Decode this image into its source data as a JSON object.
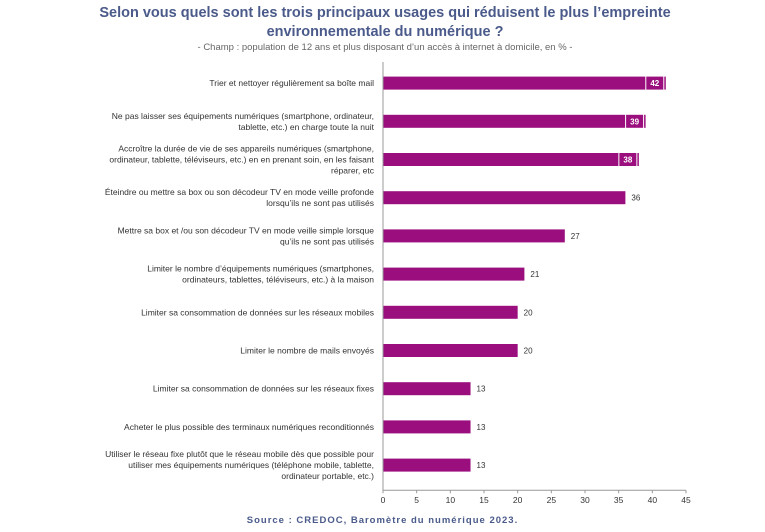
{
  "title": "Selon vous quels sont les trois principaux usages qui réduisent le plus l’empreinte environnementale du numérique ?",
  "subtitle": "- Champ : population de 12 ans et plus disposant d’un accès à internet à domicile, en % -",
  "source": "Source : CREDOC, Baromètre du numérique 2023.",
  "colors": {
    "bar": "#9b0e7e",
    "label_box": "#9b0e7e"
  },
  "chart_data": {
    "type": "bar",
    "orientation": "horizontal",
    "xlim": [
      0,
      45
    ],
    "xticks": [
      0,
      5,
      10,
      15,
      20,
      25,
      30,
      35,
      40,
      45
    ],
    "grid": false,
    "categories": [
      [
        "Trier et nettoyer régulièrement sa boîte mail"
      ],
      [
        "Ne pas laisser ses équipements numériques (smartphone, ordinateur,",
        "tablette, etc.) en charge toute la nuit"
      ],
      [
        "Accroître la durée de vie de ses appareils numériques (smartphone,",
        "ordinateur, tablette, téléviseurs, etc.) en en prenant soin, en les faisant",
        "réparer, etc"
      ],
      [
        "Éteindre ou mettre sa box ou son décodeur TV en mode veille profonde",
        "lorsqu’ils ne sont pas utilisés"
      ],
      [
        "Mettre sa box et /ou son décodeur TV en mode veille simple lorsque",
        "qu’ils ne sont pas utilisés"
      ],
      [
        "Limiter le nombre d’équipements numériques (smartphones,",
        "ordinateurs, tablettes, téléviseurs, etc.) à la maison"
      ],
      [
        "Limiter sa consommation de données sur les réseaux mobiles"
      ],
      [
        "Limiter le nombre de mails envoyés"
      ],
      [
        "Limiter sa consommation de données sur les réseaux fixes"
      ],
      [
        "Acheter le plus possible des terminaux numériques reconditionnés"
      ],
      [
        "Utiliser le réseau fixe plutôt que le réseau mobile dès que possible pour",
        "utiliser mes équipements numériques (téléphone mobile, tablette,",
        "ordinateur portable, etc.)"
      ]
    ],
    "values": [
      42,
      39,
      38,
      36,
      27,
      21,
      20,
      20,
      13,
      13,
      13
    ],
    "highlighted": [
      true,
      true,
      true,
      false,
      false,
      false,
      false,
      false,
      false,
      false,
      false
    ]
  }
}
